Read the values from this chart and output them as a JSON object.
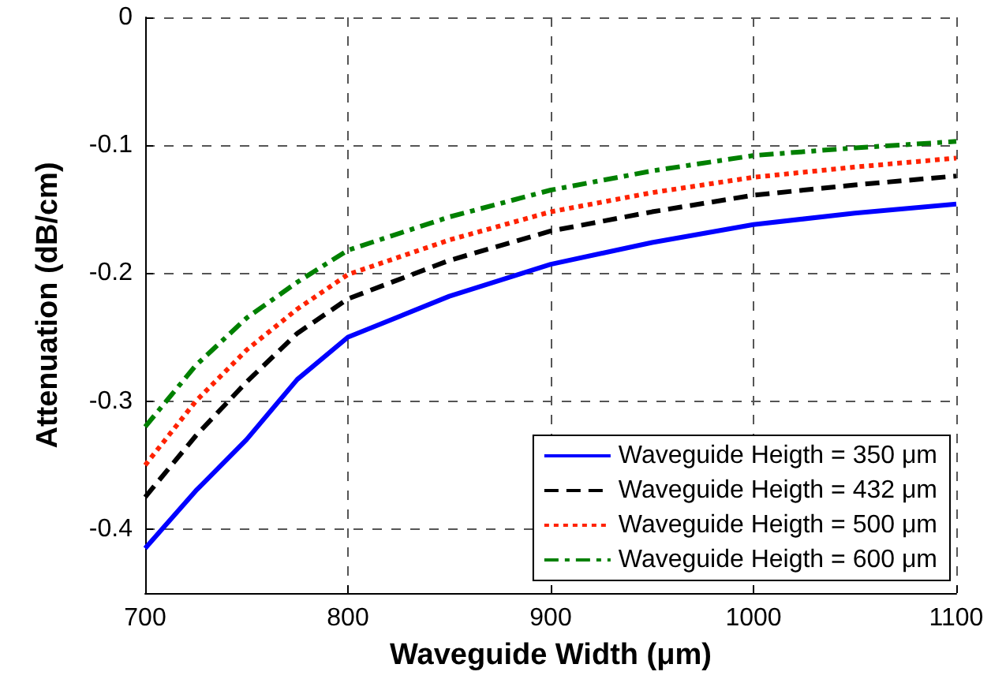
{
  "chart_data": {
    "type": "line",
    "xlabel": "Waveguide Width (μm)",
    "ylabel": "Attenuation (dB/cm)",
    "x": [
      700,
      725,
      750,
      775,
      800,
      850,
      900,
      950,
      1000,
      1050,
      1100
    ],
    "series": [
      {
        "name": "Waveguide Heigth = 350 μm",
        "color": "#0000ff",
        "line_style": "solid",
        "values": [
          -0.415,
          -0.37,
          -0.33,
          -0.283,
          -0.25,
          -0.218,
          -0.193,
          -0.176,
          -0.162,
          -0.153,
          -0.146
        ]
      },
      {
        "name": "Waveguide Heigth = 432 μm",
        "color": "#000000",
        "line_style": "dashed",
        "values": [
          -0.375,
          -0.327,
          -0.285,
          -0.247,
          -0.22,
          -0.19,
          -0.167,
          -0.152,
          -0.139,
          -0.131,
          -0.124
        ]
      },
      {
        "name": "Waveguide Heigth = 500 μm",
        "color": "#ff2200",
        "line_style": "dotted",
        "values": [
          -0.35,
          -0.3,
          -0.26,
          -0.228,
          -0.201,
          -0.174,
          -0.152,
          -0.137,
          -0.125,
          -0.117,
          -0.11
        ]
      },
      {
        "name": "Waveguide Heigth = 600 μm",
        "color": "#008000",
        "line_style": "dashdot",
        "values": [
          -0.32,
          -0.272,
          -0.235,
          -0.207,
          -0.182,
          -0.156,
          -0.135,
          -0.12,
          -0.108,
          -0.102,
          -0.097
        ]
      }
    ],
    "xlim": [
      700,
      1100
    ],
    "xticks": [
      700,
      800,
      900,
      1000,
      1100
    ],
    "ylim": [
      -0.45,
      0
    ],
    "yticks": [
      -0.4,
      -0.3,
      -0.2,
      -0.1,
      0
    ],
    "grid": true,
    "legend": "bottom right",
    "marker": "none"
  }
}
